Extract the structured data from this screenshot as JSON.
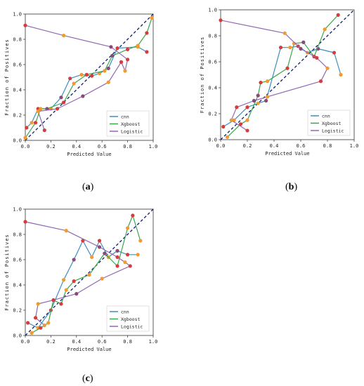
{
  "captions": [
    "a",
    "b",
    "c"
  ],
  "legend_labels": [
    "cnn",
    "Xgboost",
    "Logistic"
  ],
  "colors": {
    "cnn": "#3a8fc0",
    "Xgboost": "#3aa64a",
    "Logistic": "#9067b3",
    "ideal": "#0c1c6e",
    "marker_red": "#d63c3c",
    "marker_orange": "#f39a2e",
    "marker_purple": "#8a4a78"
  },
  "chart_data": [
    {
      "type": "line",
      "id": "a",
      "xlabel": "Predicted Value",
      "ylabel": "Fraction of Positives",
      "xlim": [
        0,
        1
      ],
      "ylim": [
        0,
        1
      ],
      "xticks": [
        "0.0",
        "0.2",
        "0.4",
        "0.6",
        "0.8",
        "1.0"
      ],
      "yticks": [
        "0.0",
        "0.2",
        "0.4",
        "0.6",
        "0.8",
        "1.0"
      ],
      "legend_position": "bottom-right",
      "series": [
        {
          "name": "cnn",
          "x": [
            0.01,
            0.05,
            0.1,
            0.2,
            0.28,
            0.35,
            0.44,
            0.52,
            0.58,
            0.65,
            0.72,
            0.88,
            0.95
          ],
          "y": [
            0.1,
            0.14,
            0.25,
            0.25,
            0.34,
            0.49,
            0.52,
            0.51,
            0.53,
            0.57,
            0.73,
            0.74,
            0.7
          ]
        },
        {
          "name": "Xgboost",
          "x": [
            0.0,
            0.08,
            0.12,
            0.17,
            0.3,
            0.38,
            0.48,
            0.62,
            0.68,
            0.8,
            0.88,
            0.95,
            0.99
          ],
          "y": [
            0.02,
            0.14,
            0.25,
            0.25,
            0.3,
            0.45,
            0.52,
            0.55,
            0.67,
            0.72,
            0.75,
            0.85,
            0.97
          ]
        },
        {
          "name": "Logistic",
          "x": [
            0.0,
            0.3,
            0.67,
            0.8,
            0.78,
            0.75,
            0.65,
            0.45,
            0.25,
            0.1,
            0.15
          ],
          "y": [
            0.91,
            0.83,
            0.74,
            0.64,
            0.55,
            0.62,
            0.46,
            0.35,
            0.25,
            0.23,
            0.08
          ]
        }
      ]
    },
    {
      "type": "line",
      "id": "b",
      "xlabel": "Predicted Value",
      "ylabel": "Fraction of Positives",
      "xlim": [
        0,
        1
      ],
      "ylim": [
        0,
        1
      ],
      "xticks": [
        "0.0",
        "0.2",
        "0.4",
        "0.6",
        "0.8",
        "1.0"
      ],
      "yticks": [
        "0.0",
        "0.2",
        "0.4",
        "0.6",
        "0.8",
        "1.0"
      ],
      "legend_position": "bottom-right",
      "series": [
        {
          "name": "cnn",
          "x": [
            0.02,
            0.1,
            0.2,
            0.28,
            0.34,
            0.45,
            0.52,
            0.58,
            0.65,
            0.73,
            0.85,
            0.9
          ],
          "y": [
            0.1,
            0.15,
            0.25,
            0.28,
            0.3,
            0.71,
            0.71,
            0.72,
            0.67,
            0.7,
            0.67,
            0.5
          ]
        },
        {
          "name": "Xgboost",
          "x": [
            0.05,
            0.15,
            0.2,
            0.28,
            0.3,
            0.35,
            0.5,
            0.55,
            0.62,
            0.7,
            0.78,
            0.88
          ],
          "y": [
            0.02,
            0.12,
            0.15,
            0.34,
            0.44,
            0.45,
            0.55,
            0.74,
            0.75,
            0.64,
            0.85,
            0.96
          ]
        },
        {
          "name": "Logistic",
          "x": [
            0.0,
            0.48,
            0.6,
            0.72,
            0.8,
            0.75,
            0.35,
            0.25,
            0.12,
            0.08,
            0.2
          ],
          "y": [
            0.92,
            0.82,
            0.7,
            0.63,
            0.55,
            0.45,
            0.33,
            0.3,
            0.25,
            0.15,
            0.07
          ]
        }
      ]
    },
    {
      "type": "line",
      "id": "c",
      "xlabel": "Predicted Value",
      "ylabel": "Fraction of Positives",
      "xlim": [
        0,
        1
      ],
      "ylim": [
        0,
        1
      ],
      "xticks": [
        "0.0",
        "0.2",
        "0.4",
        "0.6",
        "0.8",
        "1.0"
      ],
      "yticks": [
        "0.0",
        "0.2",
        "0.4",
        "0.6",
        "0.8",
        "1.0"
      ],
      "legend_position": "bottom-right",
      "series": [
        {
          "name": "cnn",
          "x": [
            0.02,
            0.1,
            0.2,
            0.3,
            0.38,
            0.45,
            0.52,
            0.58,
            0.65,
            0.72,
            0.8,
            0.88
          ],
          "y": [
            0.1,
            0.06,
            0.2,
            0.44,
            0.6,
            0.75,
            0.62,
            0.75,
            0.62,
            0.67,
            0.64,
            0.64
          ]
        },
        {
          "name": "Xgboost",
          "x": [
            0.05,
            0.12,
            0.18,
            0.22,
            0.28,
            0.32,
            0.38,
            0.5,
            0.62,
            0.72,
            0.8,
            0.84,
            0.9
          ],
          "y": [
            0.02,
            0.06,
            0.1,
            0.28,
            0.25,
            0.36,
            0.43,
            0.48,
            0.65,
            0.55,
            0.85,
            0.95,
            0.75
          ]
        },
        {
          "name": "Logistic",
          "x": [
            0.0,
            0.32,
            0.58,
            0.72,
            0.78,
            0.82,
            0.6,
            0.4,
            0.22,
            0.1,
            0.08,
            0.15
          ],
          "y": [
            0.9,
            0.83,
            0.7,
            0.62,
            0.58,
            0.55,
            0.45,
            0.33,
            0.28,
            0.25,
            0.14,
            0.08
          ]
        }
      ]
    }
  ]
}
